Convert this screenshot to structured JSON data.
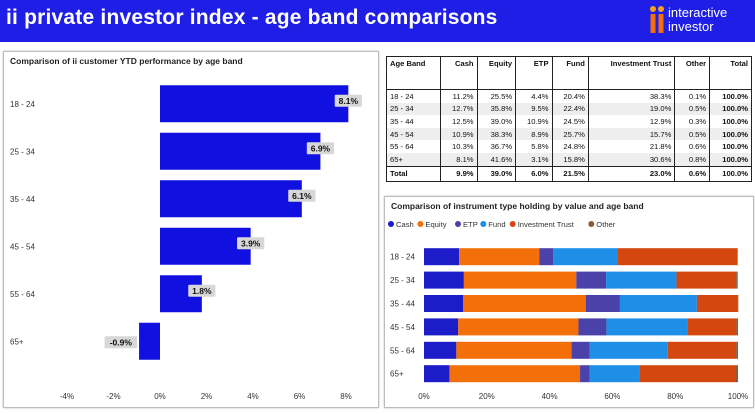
{
  "header": {
    "title": "ii private investor index - age band comparisons",
    "logo_line1": "interactive",
    "logo_line2": "investor"
  },
  "colors": {
    "banner": "#1e1ee6",
    "bar": "#1010e0",
    "stack": [
      "#1c1cc8",
      "#f26f0a",
      "#4a41a9",
      "#1e8fe6",
      "#d4480f",
      "#8d5b3a"
    ]
  },
  "left_panel": {
    "title": "Comparison of ii customer YTD performance by age band"
  },
  "table": {
    "headers": [
      "Age Band",
      "Cash",
      "Equity",
      "ETP",
      "Fund",
      "Investment Trust",
      "Other",
      "Total"
    ],
    "rows": [
      [
        "18 - 24",
        "11.2%",
        "25.5%",
        "4.4%",
        "20.4%",
        "38.3%",
        "0.1%",
        "100.0%"
      ],
      [
        "25 - 34",
        "12.7%",
        "35.8%",
        "9.5%",
        "22.4%",
        "19.0%",
        "0.5%",
        "100.0%"
      ],
      [
        "35 - 44",
        "12.5%",
        "39.0%",
        "10.9%",
        "24.5%",
        "12.9%",
        "0.3%",
        "100.0%"
      ],
      [
        "45 - 54",
        "10.9%",
        "38.3%",
        "8.9%",
        "25.7%",
        "15.7%",
        "0.5%",
        "100.0%"
      ],
      [
        "55 - 64",
        "10.3%",
        "36.7%",
        "5.8%",
        "24.8%",
        "21.8%",
        "0.6%",
        "100.0%"
      ],
      [
        "65+",
        "8.1%",
        "41.6%",
        "3.1%",
        "15.8%",
        "30.6%",
        "0.8%",
        "100.0%"
      ]
    ],
    "total": [
      "Total",
      "9.9%",
      "39.0%",
      "6.0%",
      "21.5%",
      "23.0%",
      "0.6%",
      "100.0%"
    ]
  },
  "right_panel": {
    "title": "Comparison of instrument type holding by value and age band"
  },
  "chart_data": [
    {
      "type": "bar",
      "orientation": "horizontal",
      "title": "Comparison of ii customer YTD performance by age band",
      "categories": [
        "18 - 24",
        "25 - 34",
        "35 - 44",
        "45 - 54",
        "55 - 64",
        "65+"
      ],
      "values": [
        8.1,
        6.9,
        6.1,
        3.9,
        1.8,
        -0.9
      ],
      "data_labels": [
        "8.1%",
        "6.9%",
        "6.1%",
        "3.9%",
        "1.8%",
        "-0.9%"
      ],
      "xlim": [
        -4,
        8
      ],
      "ticks": [
        -4,
        -2,
        0,
        2,
        4,
        6,
        8
      ],
      "tick_labels": [
        "-4%",
        "-2%",
        "0%",
        "2%",
        "4%",
        "6%",
        "8%"
      ],
      "grid": false
    },
    {
      "type": "bar",
      "orientation": "horizontal",
      "stacked": "percent",
      "title": "Comparison of instrument type holding by value and age band",
      "categories": [
        "18 - 24",
        "25 - 34",
        "35 - 44",
        "45 - 54",
        "55 - 64",
        "65+"
      ],
      "series": [
        {
          "name": "Cash",
          "values": [
            11.2,
            12.7,
            12.5,
            10.9,
            10.3,
            8.1
          ]
        },
        {
          "name": "Equity",
          "values": [
            25.5,
            35.8,
            39.0,
            38.3,
            36.7,
            41.6
          ]
        },
        {
          "name": "ETP",
          "values": [
            4.4,
            9.5,
            10.9,
            8.9,
            5.8,
            3.1
          ]
        },
        {
          "name": "Fund",
          "values": [
            20.4,
            22.4,
            24.5,
            25.7,
            24.8,
            15.8
          ]
        },
        {
          "name": "Investment Trust",
          "values": [
            38.3,
            19.0,
            12.9,
            15.7,
            21.8,
            30.6
          ]
        },
        {
          "name": "Other",
          "values": [
            0.1,
            0.5,
            0.3,
            0.5,
            0.6,
            0.8
          ]
        }
      ],
      "xlim": [
        0,
        100
      ],
      "ticks": [
        0,
        20,
        40,
        60,
        80,
        100
      ],
      "tick_labels": [
        "0%",
        "20%",
        "40%",
        "60%",
        "80%",
        "100%"
      ],
      "legend": "top-left",
      "grid": false
    }
  ]
}
